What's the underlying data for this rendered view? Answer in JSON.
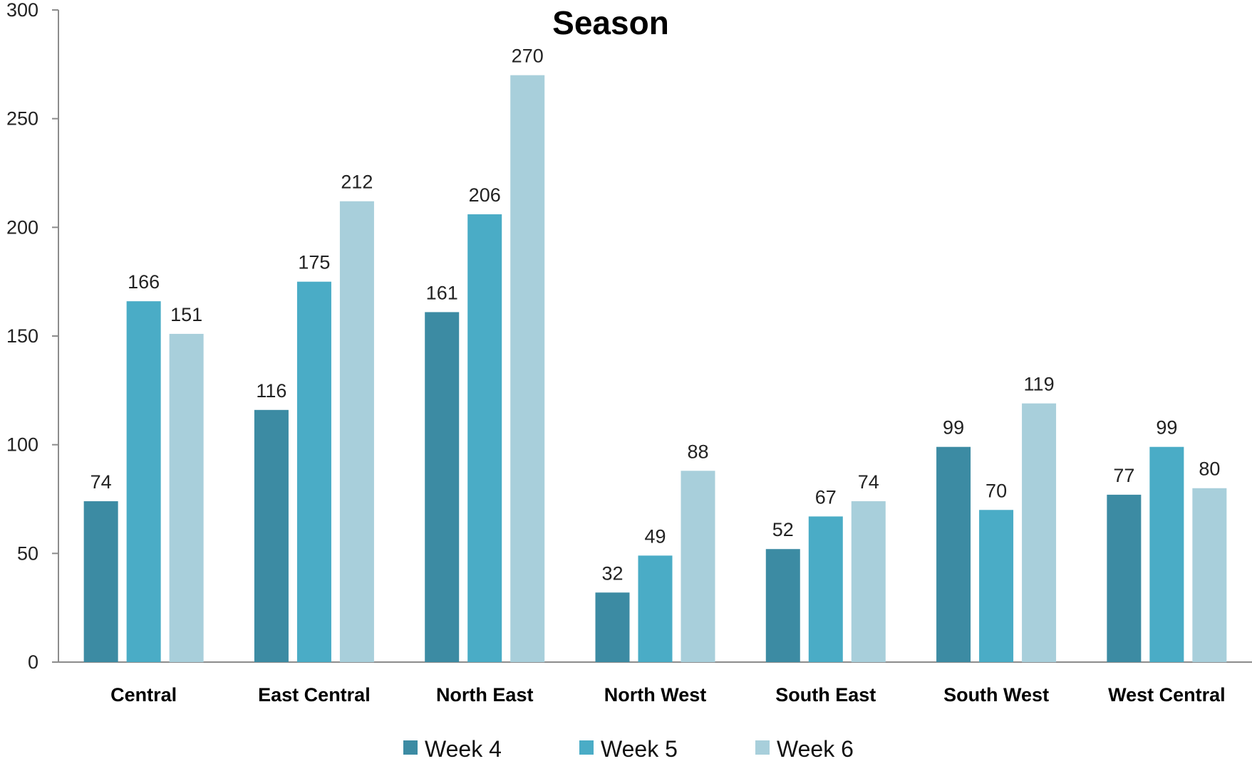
{
  "chart_data": {
    "type": "bar",
    "title": "Season",
    "xlabel": "",
    "ylabel": "",
    "ylim": [
      0,
      300
    ],
    "yticks": [
      0,
      50,
      100,
      150,
      200,
      250,
      300
    ],
    "grid": false,
    "legend_position": "bottom",
    "categories": [
      "Central",
      "East Central",
      "North East",
      "North West",
      "South East",
      "South West",
      "West Central"
    ],
    "series": [
      {
        "name": "Week 4",
        "color": "#3C8BA3",
        "values": [
          74,
          116,
          161,
          32,
          52,
          99,
          77
        ]
      },
      {
        "name": "Week 5",
        "color": "#4AACC6",
        "values": [
          166,
          175,
          206,
          49,
          67,
          70,
          99
        ]
      },
      {
        "name": "Week 6",
        "color": "#A8CFDB",
        "values": [
          151,
          212,
          270,
          88,
          74,
          119,
          80
        ]
      }
    ]
  }
}
